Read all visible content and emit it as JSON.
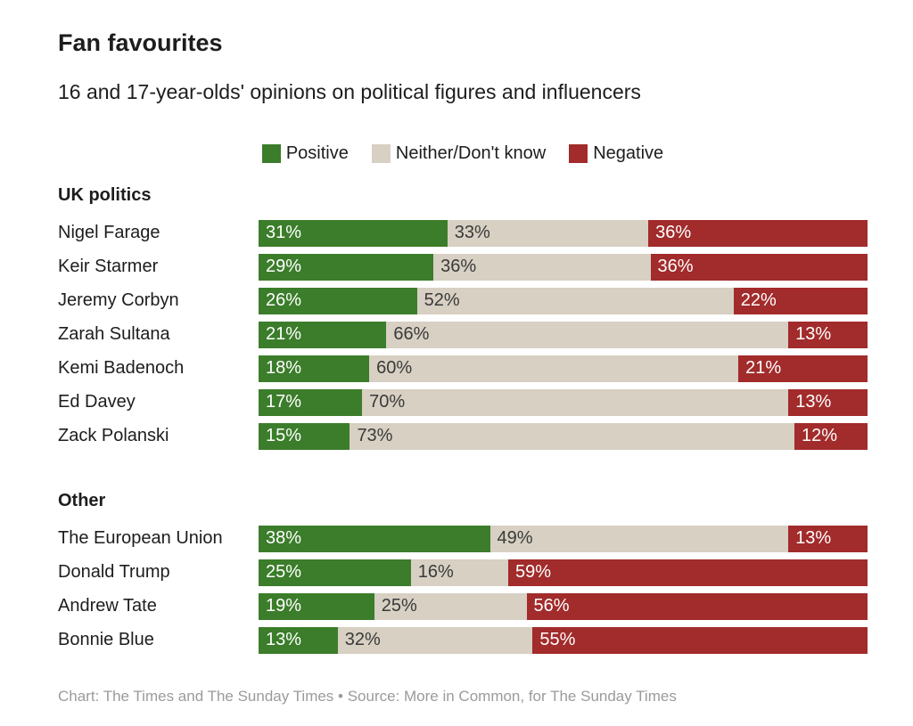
{
  "chart_data": {
    "type": "bar",
    "stacked": true,
    "orientation": "horizontal",
    "title": "Fan favourites",
    "subtitle": "16 and 17-year-olds' opinions on political figures and influencers",
    "value_suffix": "%",
    "legend_position": "top-center",
    "series": [
      {
        "name": "Positive",
        "color": "#3b7d2a",
        "label_color": "#ffffff"
      },
      {
        "name": "Neither/Don't know",
        "color": "#d7d0c3",
        "label_color": "#3a3a3a"
      },
      {
        "name": "Negative",
        "color": "#a22b2b",
        "label_color": "#ffffff"
      }
    ],
    "sections": [
      {
        "label": "UK politics",
        "rows": [
          {
            "name": "Nigel Farage",
            "values": [
              31,
              33,
              36
            ]
          },
          {
            "name": "Keir Starmer",
            "values": [
              29,
              36,
              36
            ]
          },
          {
            "name": "Jeremy Corbyn",
            "values": [
              26,
              52,
              22
            ]
          },
          {
            "name": "Zarah Sultana",
            "values": [
              21,
              66,
              13
            ]
          },
          {
            "name": "Kemi Badenoch",
            "values": [
              18,
              60,
              21
            ]
          },
          {
            "name": "Ed Davey",
            "values": [
              17,
              70,
              13
            ]
          },
          {
            "name": "Zack Polanski",
            "values": [
              15,
              73,
              12
            ]
          }
        ]
      },
      {
        "label": "Other",
        "rows": [
          {
            "name": "The European Union",
            "values": [
              38,
              49,
              13
            ]
          },
          {
            "name": "Donald Trump",
            "values": [
              25,
              16,
              59
            ]
          },
          {
            "name": "Andrew Tate",
            "values": [
              19,
              25,
              56
            ]
          },
          {
            "name": "Bonnie Blue",
            "values": [
              13,
              32,
              55
            ]
          }
        ]
      }
    ]
  },
  "footer": {
    "text": "Chart: The Times and The Sunday Times • Source: More in Common, for The Sunday Times"
  }
}
